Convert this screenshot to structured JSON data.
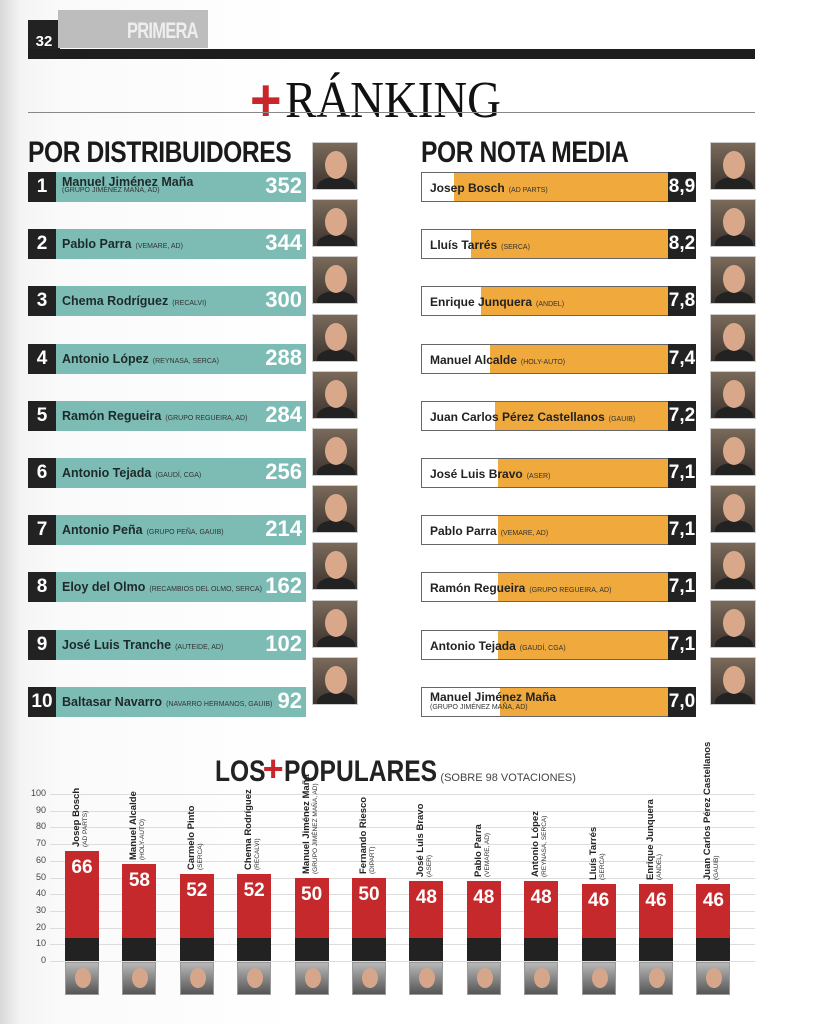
{
  "header": {
    "page_number": "32",
    "section": "PRIMERA",
    "title_plus": "+",
    "title": "RÁNKING"
  },
  "distribuidores": {
    "heading": "POR DISTRIBUIDORES",
    "accent": "#7dbcb5",
    "rows": [
      {
        "rank": "1",
        "name": "Manuel Jiménez Maña",
        "company": "(GRUPO JIMÉNEZ MAÑA, AD)",
        "score": "352",
        "two_line": true
      },
      {
        "rank": "2",
        "name": "Pablo Parra",
        "company": "(VEMARE, AD)",
        "score": "344"
      },
      {
        "rank": "3",
        "name": "Chema Rodríguez",
        "company": "(RECALVI)",
        "score": "300"
      },
      {
        "rank": "4",
        "name": "Antonio López",
        "company": "(REYNASA, SERCA)",
        "score": "288"
      },
      {
        "rank": "5",
        "name": "Ramón Regueira",
        "company": "(GRUPO REGUEIRA, AD)",
        "score": "284"
      },
      {
        "rank": "6",
        "name": "Antonio Tejada",
        "company": "(GAUDÍ, CGA)",
        "score": "256"
      },
      {
        "rank": "7",
        "name": "Antonio Peña",
        "company": "(GRUPO PEÑA, GAUIB)",
        "score": "214"
      },
      {
        "rank": "8",
        "name": "Eloy del Olmo",
        "company": "(RECAMBIOS DEL OLMO, SERCA)",
        "score": "162"
      },
      {
        "rank": "9",
        "name": "José Luis Tranche",
        "company": "(AUTEIDE, AD)",
        "score": "102"
      },
      {
        "rank": "10",
        "name": "Baltasar Navarro",
        "company": "(NAVARRO HERMANOS, GAUIB)",
        "score": "92"
      }
    ]
  },
  "nota_media": {
    "heading": "POR NOTA MEDIA",
    "accent": "#efa93c",
    "rows": [
      {
        "name": "Josep Bosch",
        "company": "(AD PARTS)",
        "score": "8,9",
        "value": 8.9
      },
      {
        "name": "Lluís Tarrés",
        "company": "(SERCA)",
        "score": "8,2",
        "value": 8.2
      },
      {
        "name": "Enrique Junquera",
        "company": "(ANDEL)",
        "score": "7,8",
        "value": 7.8
      },
      {
        "name": "Manuel Alcalde",
        "company": "(HOLY-AUTO)",
        "score": "7,4",
        "value": 7.4
      },
      {
        "name": "Juan Carlos Pérez Castellanos",
        "company": "(GAUIB)",
        "score": "7,2",
        "value": 7.2
      },
      {
        "name": "José Luis Bravo",
        "company": "(ASER)",
        "score": "7,1",
        "value": 7.1
      },
      {
        "name": "Pablo Parra",
        "company": "(VEMARE, AD)",
        "score": "7,1",
        "value": 7.1
      },
      {
        "name": "Ramón Regueira",
        "company": "(GRUPO REGUEIRA, AD)",
        "score": "7,1",
        "value": 7.1
      },
      {
        "name": "Antonio Tejada",
        "company": "(GAUDÍ, CGA)",
        "score": "7,1",
        "value": 7.1
      },
      {
        "name": "Manuel Jiménez Maña",
        "company": "(GRUPO JIMÉNEZ MAÑA, AD)",
        "score": "7,0",
        "value": 7.0,
        "two_line": true
      }
    ]
  },
  "chart_data": {
    "type": "bar",
    "title_left": "LOS",
    "title_plus": "+",
    "title_right": "POPULARES",
    "subtitle": "(SOBRE 98 VOTACIONES)",
    "ylim": [
      0,
      100
    ],
    "yticks": [
      "0",
      "10",
      "20",
      "30",
      "40",
      "50",
      "60",
      "70",
      "80",
      "90",
      "100"
    ],
    "grid": true,
    "bar_color": "#c5292c",
    "categories": [
      {
        "name": "Josep Bosch",
        "company": "(AD PARTS)"
      },
      {
        "name": "Manuel Alcalde",
        "company": "(HOLY-AUTO)"
      },
      {
        "name": "Carmelo Pinto",
        "company": "(SERCA)"
      },
      {
        "name": "Chema Rodríguez",
        "company": "(RECALVI)"
      },
      {
        "name": "Manuel Jiménez Maña",
        "company": "(GRUPO JIMÉNEZ MAÑA, AD)"
      },
      {
        "name": "Fernando Riesco",
        "company": "(DIPART)"
      },
      {
        "name": "José Luis Bravo",
        "company": "(ASER)"
      },
      {
        "name": "Pablo Parra",
        "company": "(VEMARE, AD)"
      },
      {
        "name": "Antonio López",
        "company": "(REYNASA, SERCA)"
      },
      {
        "name": "Lluís Tarrés",
        "company": "(SERCA)"
      },
      {
        "name": "Enrique Junquera",
        "company": "(ANDEL)"
      },
      {
        "name": "Juan Carlos Pérez Castellanos",
        "company": "(GAUIB)"
      }
    ],
    "values": [
      66,
      58,
      52,
      52,
      50,
      50,
      48,
      48,
      48,
      46,
      46,
      46
    ]
  }
}
